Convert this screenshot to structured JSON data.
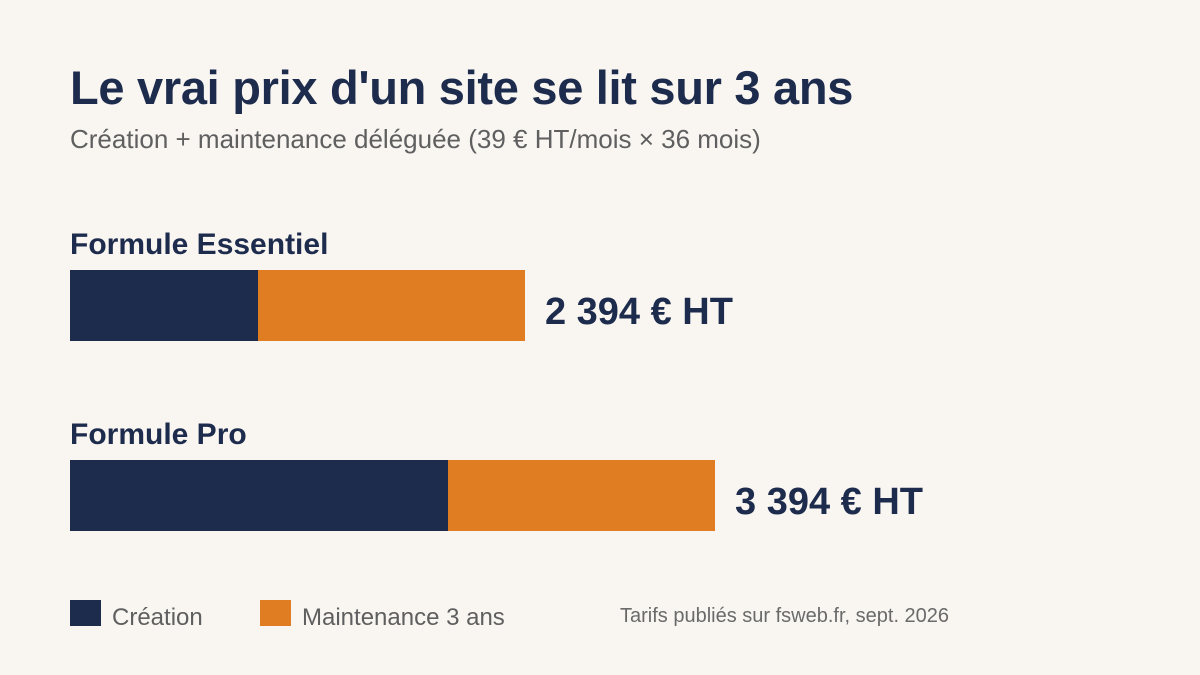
{
  "colors": {
    "background": "#f9f6f2",
    "creation": "#1d2b4c",
    "maintenance": "#e07c22",
    "title": "#1d2b4c",
    "muted": "#5f5f5f"
  },
  "chart_data": {
    "type": "bar",
    "orientation": "horizontal",
    "stacked": true,
    "title": "Le vrai prix d'un site se lit sur 3 ans",
    "subtitle": "Création + maintenance déléguée (39 € HT/mois × 36 mois)",
    "categories": [
      "Formule Essentiel",
      "Formule Pro"
    ],
    "series": [
      {
        "name": "Création",
        "values": [
          990,
          1990
        ],
        "color": "#1d2b4c"
      },
      {
        "name": "Maintenance 3 ans",
        "values": [
          1404,
          1404
        ],
        "color": "#e07c22"
      }
    ],
    "totals": [
      2394,
      3394
    ],
    "total_labels": [
      "2 394 € HT",
      "3 394 € HT"
    ],
    "legend_position": "bottom-left",
    "grid": false,
    "source": "Tarifs publiés sur fsweb.fr, sept. 2026"
  }
}
